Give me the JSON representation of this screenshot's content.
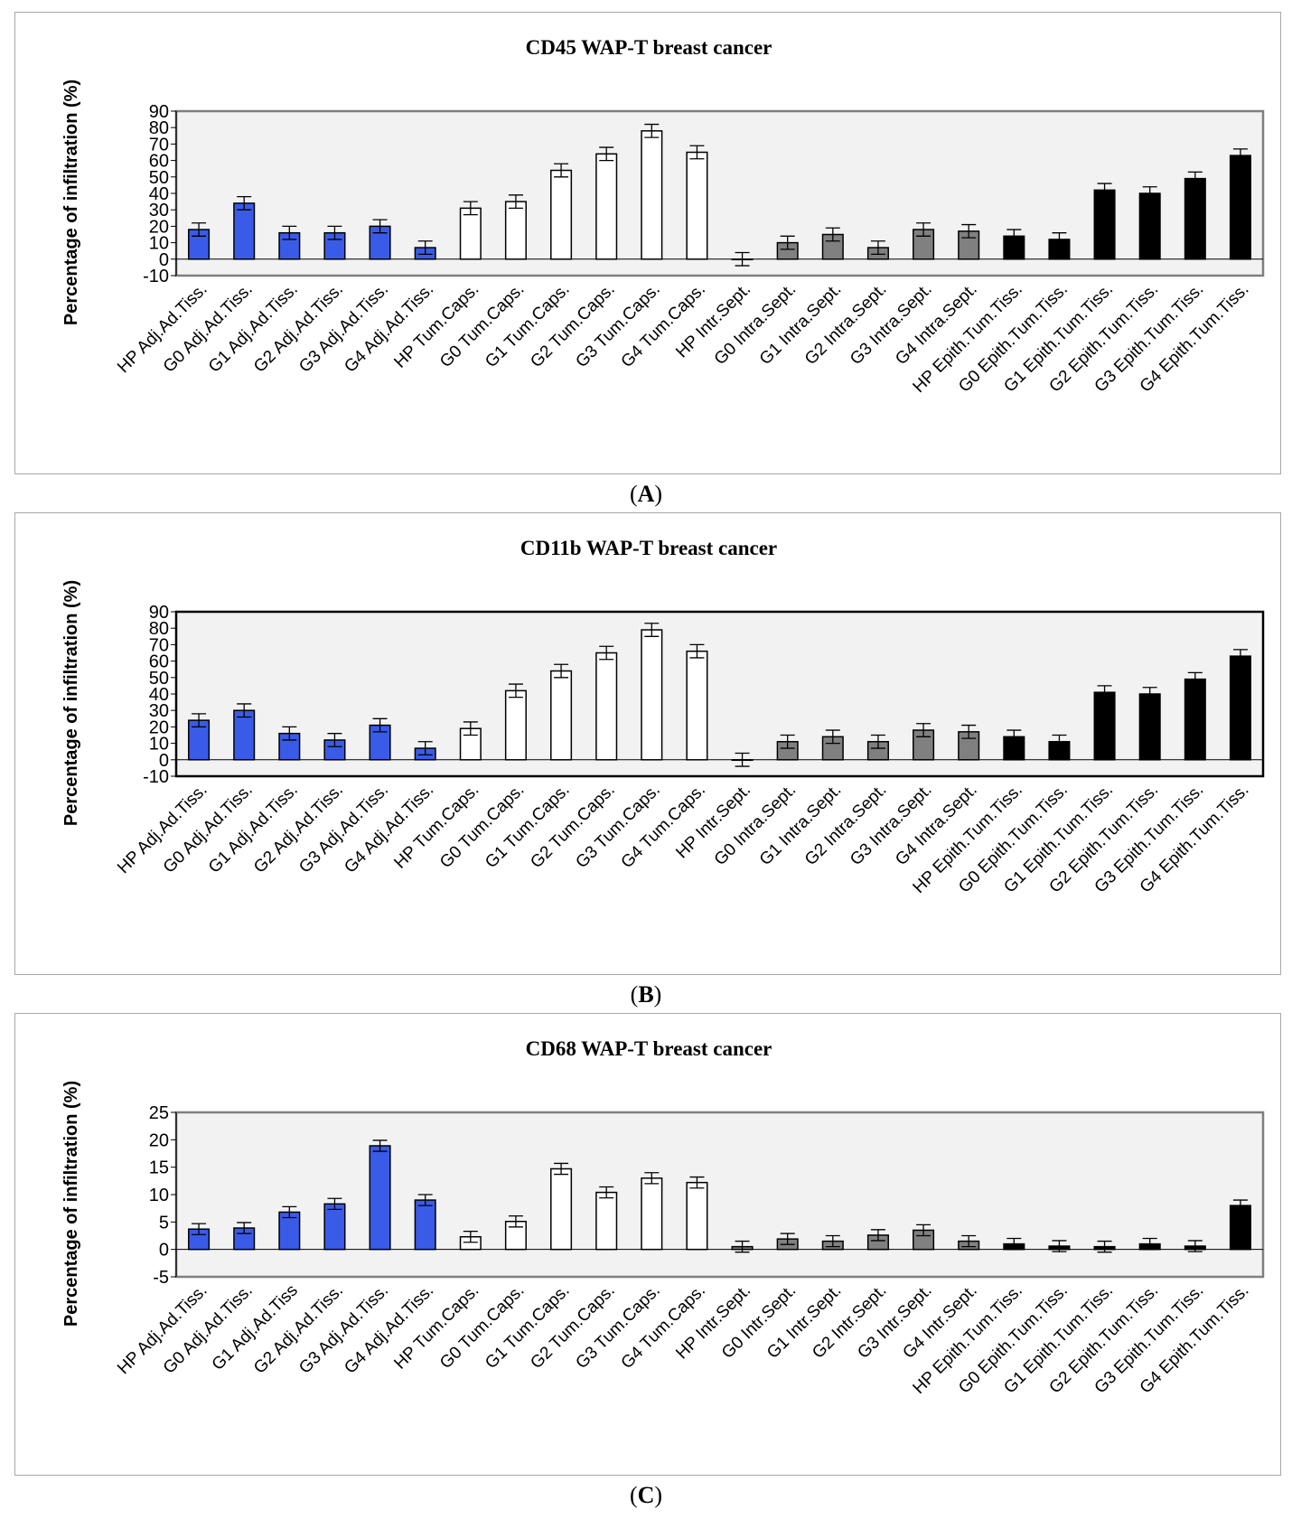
{
  "panel_labels": [
    "A",
    "B",
    "C"
  ],
  "chart_data": [
    {
      "type": "bar",
      "title": "CD45 WAP-T breast cancer",
      "ylabel": "Percentage of infiltration (%)",
      "xlabel": "",
      "ylim": [
        -10,
        90
      ],
      "yticks": [
        -10,
        0,
        10,
        20,
        30,
        40,
        50,
        60,
        70,
        80,
        90
      ],
      "yticklabels": [
        "-10",
        "0",
        "10",
        "20",
        "30",
        "40",
        "50",
        "60",
        "70",
        "80",
        "90"
      ],
      "categories": [
        "HP Adj.Ad.Tiss.",
        "G0 Adj.Ad.Tiss.",
        "G1 Adj.Ad.Tiss.",
        "G2 Adj.Ad.Tiss.",
        "G3 Adj.Ad.Tiss.",
        "G4 Adj.Ad.Tiss.",
        "HP Tum.Caps.",
        "G0 Tum.Caps.",
        "G1 Tum.Caps.",
        "G2 Tum.Caps.",
        "G3 Tum.Caps.",
        "G4 Tum.Caps.",
        "HP Intr.Sept.",
        "G0 Intra.Sept.",
        "G1 Intra.Sept.",
        "G2 Intra.Sept.",
        "G3 Intra.Sept.",
        "G4 Intra.Sept.",
        "HP Epith.Tum.Tiss.",
        "G0 Epith.Tum.Tiss.",
        "G1 Epith.Tum.Tiss.",
        "G2 Epith.Tum.Tiss.",
        "G3 Epith.Tum.Tiss.",
        "G4 Epith.Tum.Tiss."
      ],
      "values": [
        18,
        34,
        16,
        16,
        20,
        7,
        31,
        35,
        54,
        64,
        78,
        65,
        0,
        10,
        15,
        7,
        18,
        17,
        14,
        12,
        42,
        40,
        49,
        63
      ],
      "errors": [
        4,
        4,
        4,
        4,
        4,
        4,
        4,
        4,
        4,
        4,
        4,
        4,
        4,
        4,
        4,
        4,
        4,
        4,
        4,
        4,
        4,
        4,
        4,
        4
      ],
      "colors": [
        "#3a5be8",
        "#3a5be8",
        "#3a5be8",
        "#3a5be8",
        "#3a5be8",
        "#3a5be8",
        "#ffffff",
        "#ffffff",
        "#ffffff",
        "#ffffff",
        "#ffffff",
        "#ffffff",
        "#808080",
        "#808080",
        "#808080",
        "#808080",
        "#808080",
        "#808080",
        "#000000",
        "#000000",
        "#000000",
        "#000000",
        "#000000",
        "#000000"
      ]
    },
    {
      "type": "bar",
      "title": "CD11b WAP-T breast cancer",
      "ylabel": "Percentage of infiltration (%)",
      "xlabel": "",
      "ylim": [
        -10,
        90
      ],
      "yticks": [
        -10,
        0,
        10,
        20,
        30,
        40,
        50,
        60,
        70,
        80,
        90
      ],
      "yticklabels": [
        "-10",
        "0",
        "10",
        "20",
        "30",
        "40",
        "50",
        "60",
        "70",
        "80",
        "90"
      ],
      "categories": [
        "HP Adj.Ad.Tiss.",
        "G0 Adj.Ad.Tiss.",
        "G1 Adj.Ad.Tiss.",
        "G2 Adj.Ad.Tiss.",
        "G3 Adj.Ad.Tiss.",
        "G4 Adj.Ad.Tiss.",
        "HP Tum.Caps.",
        "G0 Tum.Caps.",
        "G1 Tum.Caps.",
        "G2 Tum.Caps.",
        "G3 Tum.Caps.",
        "G4 Tum.Caps.",
        "HP Intr.Sept.",
        "G0 Intra.Sept.",
        "G1 Intra.Sept.",
        "G2 Intra.Sept.",
        "G3 Intra.Sept.",
        "G4 Intra.Sept.",
        "HP Epith.Tum.Tiss.",
        "G0 Epith.Tum.Tiss.",
        "G1 Epith.Tum.Tiss.",
        "G2 Epith.Tum.Tiss.",
        "G3 Epith.Tum.Tiss.",
        "G4 Epith.Tum.Tiss."
      ],
      "values": [
        24,
        30,
        16,
        12,
        21,
        7,
        19,
        42,
        54,
        65,
        79,
        66,
        0,
        11,
        14,
        11,
        18,
        17,
        14,
        11,
        41,
        40,
        49,
        63
      ],
      "errors": [
        4,
        4,
        4,
        4,
        4,
        4,
        4,
        4,
        4,
        4,
        4,
        4,
        4,
        4,
        4,
        4,
        4,
        4,
        4,
        4,
        4,
        4,
        4,
        4
      ],
      "colors": [
        "#3a5be8",
        "#3a5be8",
        "#3a5be8",
        "#3a5be8",
        "#3a5be8",
        "#3a5be8",
        "#ffffff",
        "#ffffff",
        "#ffffff",
        "#ffffff",
        "#ffffff",
        "#ffffff",
        "#808080",
        "#808080",
        "#808080",
        "#808080",
        "#808080",
        "#808080",
        "#000000",
        "#000000",
        "#000000",
        "#000000",
        "#000000",
        "#000000"
      ]
    },
    {
      "type": "bar",
      "title": "CD68 WAP-T breast cancer",
      "ylabel": "Percentage of infiltration (%)",
      "xlabel": "",
      "ylim": [
        -5,
        25
      ],
      "yticks": [
        -5,
        0,
        5,
        10,
        15,
        20,
        25
      ],
      "yticklabels": [
        "-5",
        "0",
        "5",
        "10",
        "15",
        "20",
        "25"
      ],
      "categories": [
        "HP Adj.Ad.Tiss.",
        "G0 Adj.Ad.Tiss.",
        "G1 Adj.Ad.Tiss",
        "G2 Adj.Ad.Tiss.",
        "G3 Adj.Ad.Tiss.",
        "G4 Adj.Ad.Tiss.",
        "HP Tum.Caps.",
        "G0 Tum.Caps.",
        "G1 Tum.Caps.",
        "G2 Tum.Caps.",
        "G3 Tum.Caps.",
        "G4 Tum.Caps.",
        "HP Intr.Sept.",
        "G0 Intr.Sept.",
        "G1 Intr.Sept.",
        "G2 Intr.Sept.",
        "G3 Intr.Sept.",
        "G4 Intr.Sept.",
        "HP Epith.Tum.Tiss.",
        "G0 Epith.Tum.Tiss.",
        "G1 Epith.Tum.Tiss.",
        "G2 Epith.Tum.Tiss.",
        "G3 Epith.Tum.Tiss.",
        "G4 Epith.Tum.Tiss."
      ],
      "values": [
        3.7,
        3.9,
        6.8,
        8.3,
        18.9,
        9.0,
        2.3,
        5.1,
        14.7,
        10.4,
        13.0,
        12.2,
        0.5,
        1.9,
        1.5,
        2.6,
        3.5,
        1.5,
        1.0,
        0.6,
        0.5,
        1.0,
        0.6,
        8.0
      ],
      "errors": [
        1,
        1,
        1,
        1,
        1,
        1,
        1,
        1,
        1,
        1,
        1,
        1,
        1,
        1,
        1,
        1,
        1,
        1,
        1,
        1,
        1,
        1,
        1,
        1
      ],
      "colors": [
        "#3a5be8",
        "#3a5be8",
        "#3a5be8",
        "#3a5be8",
        "#3a5be8",
        "#3a5be8",
        "#ffffff",
        "#ffffff",
        "#ffffff",
        "#ffffff",
        "#ffffff",
        "#ffffff",
        "#808080",
        "#808080",
        "#808080",
        "#808080",
        "#808080",
        "#808080",
        "#000000",
        "#000000",
        "#000000",
        "#000000",
        "#000000",
        "#000000"
      ]
    }
  ]
}
